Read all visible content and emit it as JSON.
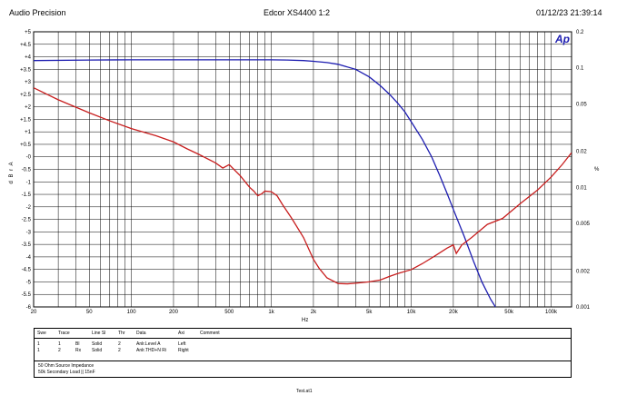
{
  "header": {
    "left": "Audio Precision",
    "center": "Edcor XS4400 1:2",
    "right": "01/12/23 21:39:14"
  },
  "logo_text": "Ap",
  "chart_data": {
    "type": "line",
    "x_scale": "log",
    "xlabel": "Hz",
    "xlim": [
      20,
      140000
    ],
    "x_ticks": [
      {
        "v": 20,
        "label": "20"
      },
      {
        "v": 50,
        "label": "50"
      },
      {
        "v": 100,
        "label": "100"
      },
      {
        "v": 200,
        "label": "200"
      },
      {
        "v": 500,
        "label": "500"
      },
      {
        "v": 1000,
        "label": "1k"
      },
      {
        "v": 2000,
        "label": "2k"
      },
      {
        "v": 5000,
        "label": "5k"
      },
      {
        "v": 10000,
        "label": "10k"
      },
      {
        "v": 20000,
        "label": "20k"
      },
      {
        "v": 50000,
        "label": "50k"
      },
      {
        "v": 100000,
        "label": "100k"
      }
    ],
    "left_axis": {
      "label": "d B r A",
      "ylim": [
        -6,
        5
      ],
      "ticks": [
        {
          "v": 5,
          "label": "+5"
        },
        {
          "v": 4.5,
          "label": "+4.5"
        },
        {
          "v": 4,
          "label": "+4"
        },
        {
          "v": 3.5,
          "label": "+3.5"
        },
        {
          "v": 3,
          "label": "+3"
        },
        {
          "v": 2.5,
          "label": "+2.5"
        },
        {
          "v": 2,
          "label": "+2"
        },
        {
          "v": 1.5,
          "label": "+1.5"
        },
        {
          "v": 1,
          "label": "+1"
        },
        {
          "v": 0.5,
          "label": "+0.5"
        },
        {
          "v": 0,
          "label": "-0"
        },
        {
          "v": -0.5,
          "label": "-0.5"
        },
        {
          "v": -1,
          "label": "-1"
        },
        {
          "v": -1.5,
          "label": "-1.5"
        },
        {
          "v": -2,
          "label": "-2"
        },
        {
          "v": -2.5,
          "label": "-2.5"
        },
        {
          "v": -3,
          "label": "-3"
        },
        {
          "v": -3.5,
          "label": "-3.5"
        },
        {
          "v": -4,
          "label": "-4"
        },
        {
          "v": -4.5,
          "label": "-4.5"
        },
        {
          "v": -5,
          "label": "-5"
        },
        {
          "v": -5.5,
          "label": "-5.5"
        },
        {
          "v": -6,
          "label": "-6"
        }
      ]
    },
    "right_axis": {
      "label": "%",
      "scale": "log",
      "ylim": [
        0.001,
        0.2
      ],
      "ticks": [
        {
          "v": 0.2,
          "label": "0.2"
        },
        {
          "v": 0.1,
          "label": "0.1"
        },
        {
          "v": 0.05,
          "label": "0.05"
        },
        {
          "v": 0.02,
          "label": "0.02"
        },
        {
          "v": 0.01,
          "label": "0.01"
        },
        {
          "v": 0.005,
          "label": "0.005"
        },
        {
          "v": 0.002,
          "label": "0.002"
        },
        {
          "v": 0.001,
          "label": "0.001"
        }
      ]
    },
    "grid": true,
    "series": [
      {
        "axis": "left",
        "color": "#1c1cb0",
        "x": [
          20,
          50,
          100,
          200,
          500,
          1000,
          1300,
          1700,
          2000,
          2500,
          3000,
          4000,
          5000,
          6000,
          7000,
          8000,
          9000,
          10000,
          12000,
          14000,
          16000,
          18000,
          20000,
          24000,
          28000,
          32000,
          37000,
          40000
        ],
        "y": [
          3.85,
          3.87,
          3.88,
          3.88,
          3.88,
          3.88,
          3.87,
          3.85,
          3.82,
          3.77,
          3.7,
          3.5,
          3.2,
          2.85,
          2.5,
          2.15,
          1.8,
          1.4,
          0.7,
          0,
          -0.75,
          -1.45,
          -2.1,
          -3.2,
          -4.2,
          -5.0,
          -5.7,
          -6.0
        ]
      },
      {
        "axis": "right",
        "color": "#c81e1e",
        "x": [
          20,
          30,
          50,
          70,
          100,
          150,
          200,
          250,
          300,
          400,
          450,
          500,
          600,
          700,
          750,
          800,
          850,
          900,
          1000,
          1100,
          1200,
          1400,
          1700,
          2000,
          2200,
          2500,
          3000,
          3500,
          4000,
          5000,
          6000,
          7000,
          8000,
          10000,
          12000,
          15000,
          18000,
          20000,
          21000,
          23000,
          27000,
          35000,
          45000,
          60000,
          80000,
          100000,
          120000,
          140000
        ],
        "y": [
          0.068,
          0.054,
          0.042,
          0.036,
          0.031,
          0.027,
          0.024,
          0.021,
          0.019,
          0.016,
          0.0145,
          0.0155,
          0.0125,
          0.01,
          0.0093,
          0.0085,
          0.0088,
          0.0093,
          0.0092,
          0.0085,
          0.0072,
          0.0055,
          0.0038,
          0.0025,
          0.0021,
          0.00175,
          0.00157,
          0.00156,
          0.00158,
          0.00162,
          0.00168,
          0.0018,
          0.0019,
          0.00205,
          0.0023,
          0.0027,
          0.0031,
          0.0033,
          0.0028,
          0.0033,
          0.0038,
          0.0049,
          0.0055,
          0.0073,
          0.0095,
          0.0122,
          0.0155,
          0.0195
        ]
      }
    ]
  },
  "legend": {
    "headers": [
      "Swe",
      "Trace",
      "Line Sl",
      "Thr",
      "Data",
      "Axi",
      "Comment"
    ],
    "rows": [
      [
        "1",
        "1",
        "Bl",
        "Solid",
        "2",
        "Anlr.Level A",
        "Left"
      ],
      [
        "1",
        "2",
        "Rx",
        "Solid",
        "2",
        "Anlr.THD+N Ri",
        "Right"
      ]
    ],
    "notes": [
      "50 Ohm Source Impedance",
      "50k Secondary Load || 15nF"
    ]
  },
  "footer": "Test.at1"
}
